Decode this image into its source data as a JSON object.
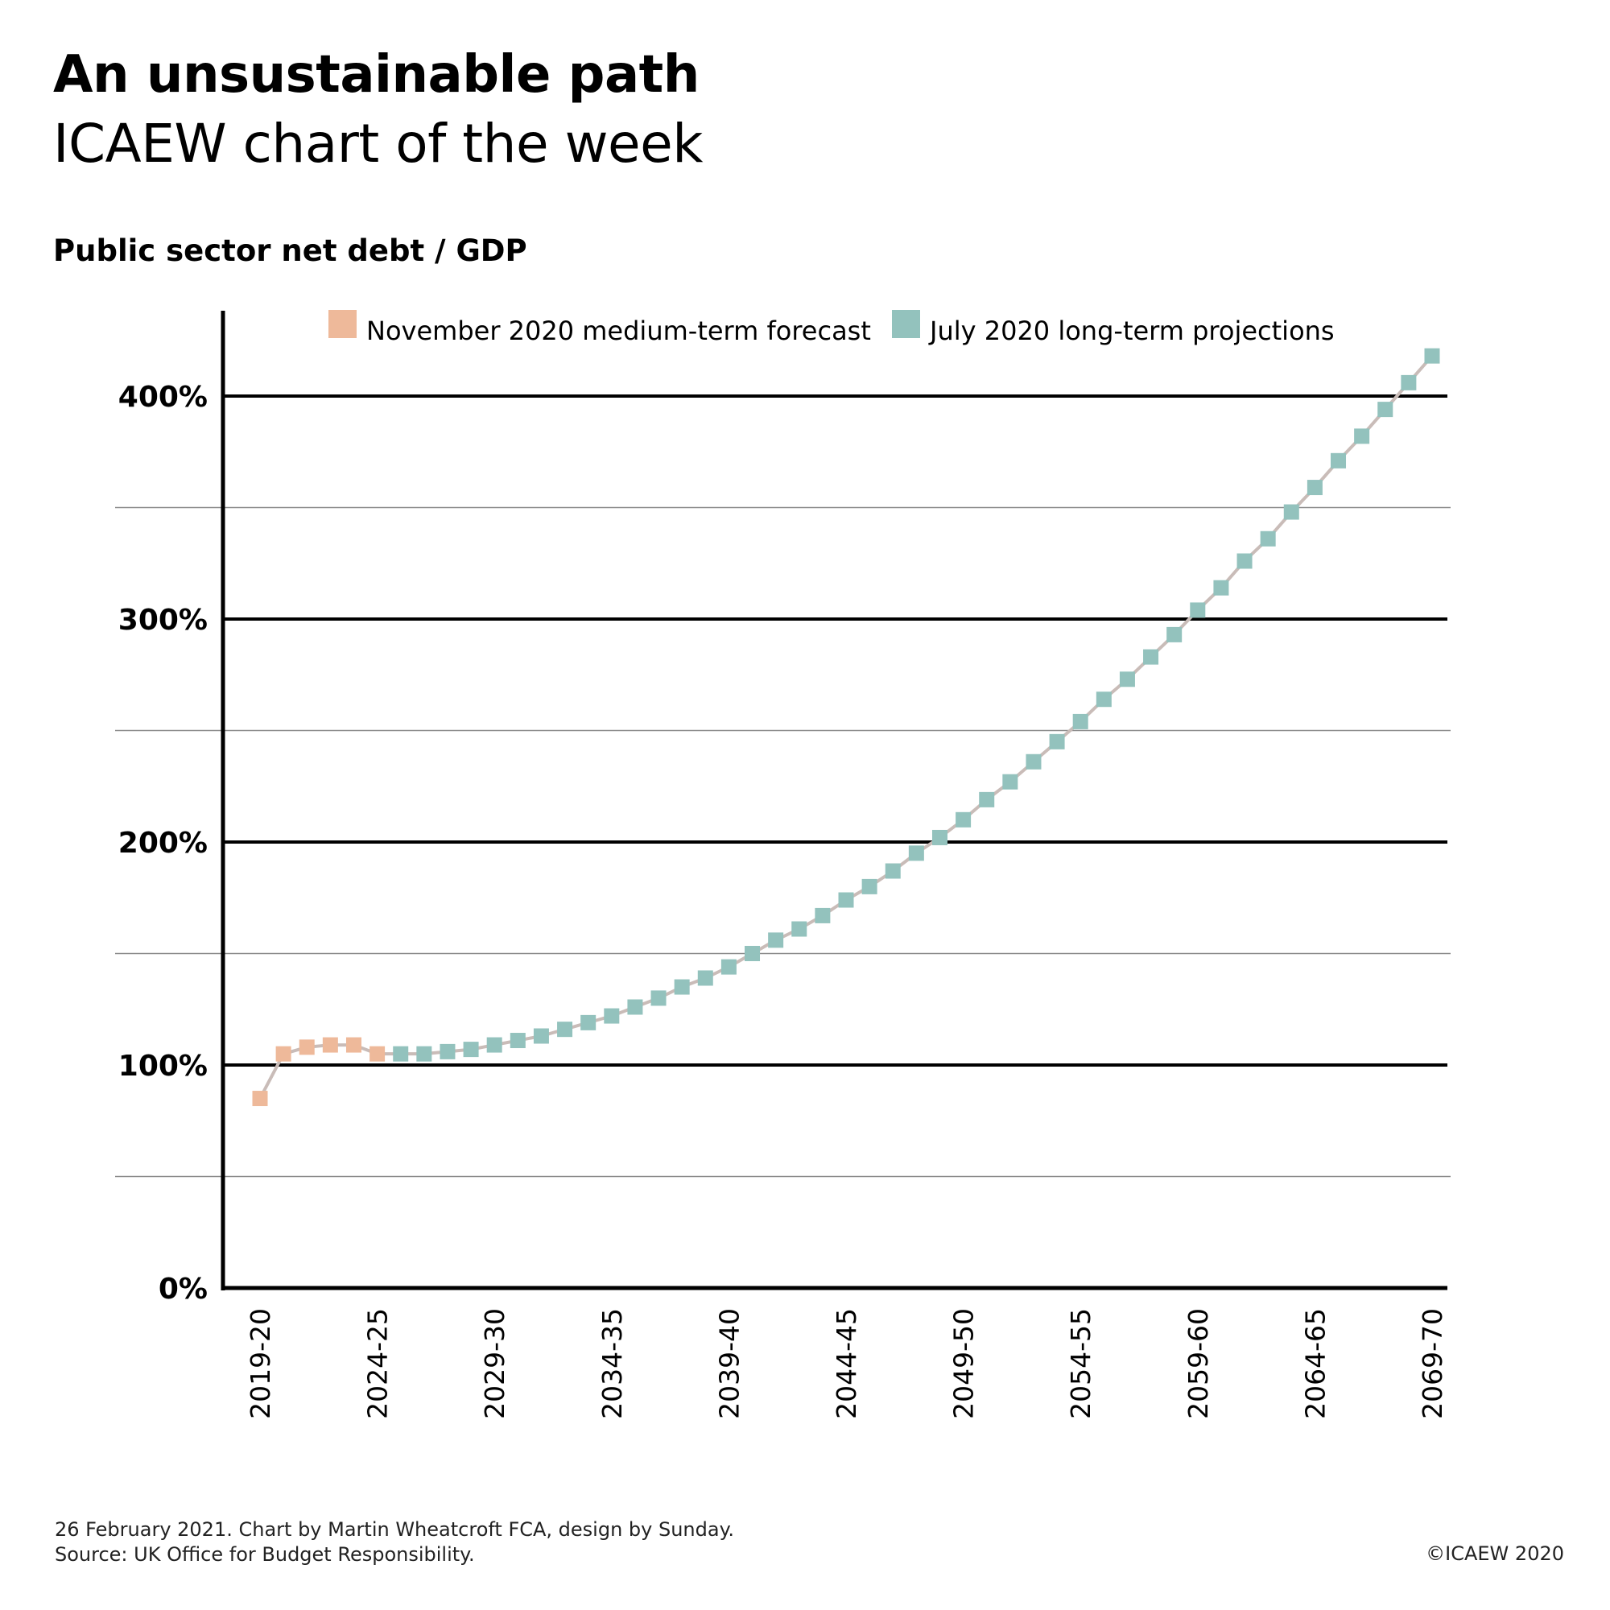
{
  "header": {
    "title": "An unsustainable path",
    "subtitle": "ICAEW chart of the week"
  },
  "footer": {
    "line1": "26 February 2021.   Chart by Martin Wheatcroft FCA, design by Sunday.",
    "line2": "Source: UK Office for Budget Responsibility.",
    "copyright": "©ICAEW 2020"
  },
  "colors": {
    "forecast": "#EEB99A",
    "projection": "#93C2BD",
    "connector_line": "#C9BCB8",
    "major_grid": "#000000",
    "minor_grid": "#8a8a8a"
  },
  "chart_data": {
    "type": "line",
    "title": "Public sector net debt / GDP",
    "xlabel": "",
    "ylabel": "",
    "ylim": [
      0,
      420
    ],
    "y_unit": "%",
    "major_ticks": [
      0,
      100,
      200,
      300,
      400
    ],
    "minor_gridlines": [
      50,
      150,
      250,
      350
    ],
    "y_tick_labels": [
      "0%",
      "100%",
      "200%",
      "300%",
      "400%"
    ],
    "grid": true,
    "legend_position": "top",
    "x_tick_labels": [
      "2019-20",
      "2024-25",
      "2029-30",
      "2034-35",
      "2039-40",
      "2044-45",
      "2049-50",
      "2054-55",
      "2059-60",
      "2064-65",
      "2069-70"
    ],
    "x": [
      "2019-20",
      "2020-21",
      "2021-22",
      "2022-23",
      "2023-24",
      "2024-25",
      "2025-26",
      "2026-27",
      "2027-28",
      "2028-29",
      "2029-30",
      "2030-31",
      "2031-32",
      "2032-33",
      "2033-34",
      "2034-35",
      "2035-36",
      "2036-37",
      "2037-38",
      "2038-39",
      "2039-40",
      "2040-41",
      "2041-42",
      "2042-43",
      "2043-44",
      "2044-45",
      "2045-46",
      "2046-47",
      "2047-48",
      "2048-49",
      "2049-50",
      "2050-51",
      "2051-52",
      "2052-53",
      "2053-54",
      "2054-55",
      "2055-56",
      "2056-57",
      "2057-58",
      "2058-59",
      "2059-60",
      "2060-61",
      "2061-62",
      "2062-63",
      "2063-64",
      "2064-65",
      "2065-66",
      "2066-67",
      "2067-68",
      "2068-69",
      "2069-70"
    ],
    "series": [
      {
        "name": "November 2020 medium-term forecast",
        "start_index": 0,
        "values": [
          85,
          105,
          108,
          109,
          109,
          105
        ]
      },
      {
        "name": "July 2020 long-term projections",
        "start_index": 6,
        "values": [
          105,
          105,
          106,
          107,
          109,
          111,
          113,
          116,
          119,
          122,
          126,
          130,
          135,
          139,
          144,
          150,
          156,
          161,
          167,
          174,
          180,
          187,
          195,
          202,
          210,
          219,
          227,
          236,
          245,
          254,
          264,
          273,
          283,
          293,
          304,
          314,
          326,
          336,
          348,
          359,
          371,
          382,
          394,
          406,
          418
        ]
      }
    ]
  }
}
